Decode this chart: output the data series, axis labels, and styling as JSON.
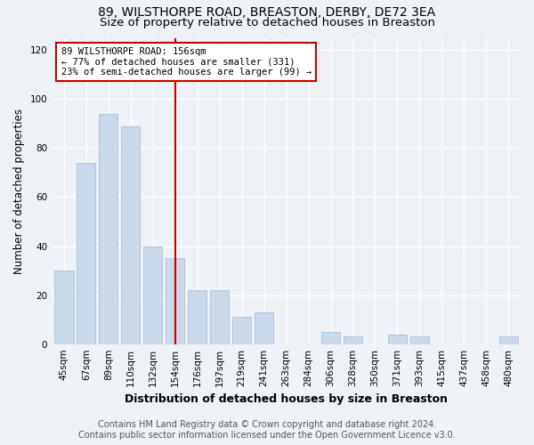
{
  "title": "89, WILSTHORPE ROAD, BREASTON, DERBY, DE72 3EA",
  "subtitle": "Size of property relative to detached houses in Breaston",
  "xlabel": "Distribution of detached houses by size in Breaston",
  "ylabel": "Number of detached properties",
  "footer_line1": "Contains HM Land Registry data © Crown copyright and database right 2024.",
  "footer_line2": "Contains public sector information licensed under the Open Government Licence v3.0.",
  "bar_labels": [
    "45sqm",
    "67sqm",
    "89sqm",
    "110sqm",
    "132sqm",
    "154sqm",
    "176sqm",
    "197sqm",
    "219sqm",
    "241sqm",
    "263sqm",
    "284sqm",
    "306sqm",
    "328sqm",
    "350sqm",
    "371sqm",
    "393sqm",
    "415sqm",
    "437sqm",
    "458sqm",
    "480sqm"
  ],
  "bar_values": [
    30,
    74,
    94,
    89,
    40,
    35,
    22,
    22,
    11,
    13,
    0,
    0,
    5,
    3,
    0,
    4,
    3,
    0,
    0,
    0,
    3
  ],
  "bar_color": "#c9d9ea",
  "bar_edge_color": "#aabfd4",
  "property_line_x": 5.0,
  "annotation_text_line1": "89 WILSTHORPE ROAD: 156sqm",
  "annotation_text_line2": "← 77% of detached houses are smaller (331)",
  "annotation_text_line3": "23% of semi-detached houses are larger (99) →",
  "annotation_box_facecolor": "#ffffff",
  "annotation_box_edgecolor": "#cc0000",
  "vline_color": "#cc0000",
  "ylim": [
    0,
    125
  ],
  "yticks": [
    0,
    20,
    40,
    60,
    80,
    100,
    120
  ],
  "background_color": "#eef2f7",
  "plot_background_color": "#eef2f7",
  "grid_color": "#ffffff",
  "title_fontsize": 10,
  "subtitle_fontsize": 9.5,
  "xlabel_fontsize": 9,
  "ylabel_fontsize": 8.5,
  "tick_fontsize": 7.5,
  "annotation_fontsize": 7.5,
  "footer_fontsize": 7
}
